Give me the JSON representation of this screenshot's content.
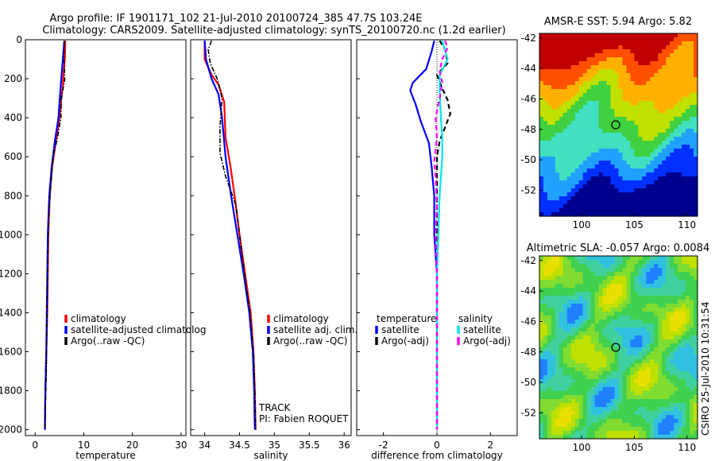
{
  "title": {
    "line1": "Argo profile: IF 1901171_102 21-Jul-2010 20100724_385 47.7S 103.24E",
    "line2": "Climatology: CARS2009. Satellite-adjusted climatology: synTS_20100720.nc (1.2d earlier)"
  },
  "colors": {
    "climatology": "#ff0000",
    "satellite": "#0000ff",
    "argo": "#000000",
    "sal_satellite": "#00e5ee",
    "sal_argo": "#ff00ff"
  },
  "chart_data": [
    {
      "id": "temperature",
      "type": "line",
      "xlabel": "temperature",
      "xlim": [
        -2,
        31
      ],
      "ylim": [
        2030,
        0
      ],
      "xticks": [
        0,
        10,
        20,
        30
      ],
      "yticks": [
        0,
        200,
        400,
        600,
        800,
        1000,
        1200,
        1400,
        1600,
        1800,
        2000
      ],
      "legend": [
        "climatology",
        "satellite-adjusted climatolog",
        "Argo(..raw -QC)"
      ],
      "series": [
        {
          "name": "climatology",
          "style": "red",
          "points": [
            [
              6.2,
              5
            ],
            [
              6.1,
              100
            ],
            [
              5.6,
              250
            ],
            [
              5.0,
              400
            ],
            [
              4.2,
              530
            ],
            [
              3.5,
              650
            ],
            [
              3.0,
              800
            ],
            [
              2.7,
              1000
            ],
            [
              2.6,
              1200
            ],
            [
              2.5,
              1400
            ],
            [
              2.3,
              1600
            ],
            [
              2.1,
              1800
            ],
            [
              2.0,
              2000
            ]
          ]
        },
        {
          "name": "satellite",
          "style": "blue",
          "points": [
            [
              6.0,
              5
            ],
            [
              5.7,
              100
            ],
            [
              5.2,
              250
            ],
            [
              4.8,
              400
            ],
            [
              4.0,
              530
            ],
            [
              3.4,
              650
            ],
            [
              2.9,
              800
            ],
            [
              2.6,
              1000
            ],
            [
              2.5,
              1200
            ],
            [
              2.4,
              1400
            ],
            [
              2.3,
              1600
            ],
            [
              2.1,
              1800
            ],
            [
              2.0,
              2000
            ]
          ]
        },
        {
          "name": "argo",
          "style": "black",
          "points": [
            [
              6.0,
              5
            ],
            [
              5.9,
              100
            ],
            [
              6.1,
              200
            ],
            [
              5.4,
              300
            ],
            [
              5.3,
              400
            ],
            [
              4.6,
              500
            ],
            [
              3.7,
              600
            ],
            [
              3.2,
              750
            ],
            [
              2.8,
              900
            ],
            [
              2.6,
              1100
            ],
            [
              2.5,
              1300
            ],
            [
              2.4,
              1500
            ],
            [
              2.3,
              1700
            ],
            [
              2.1,
              1900
            ],
            [
              2.0,
              2000
            ]
          ]
        }
      ]
    },
    {
      "id": "salinity",
      "type": "line",
      "xlabel": "salinity",
      "xlim": [
        33.8,
        36.1
      ],
      "ylim": [
        2030,
        0
      ],
      "xticks": [
        34,
        34.5,
        35,
        35.5,
        36
      ],
      "legend": [
        "climatology",
        "satellite adj. clim.",
        "Argo(..raw -QC)"
      ],
      "annotation": [
        "TRACK",
        "PI: Fabien ROQUET"
      ],
      "series": [
        {
          "name": "climatology",
          "style": "red",
          "points": [
            [
              34.0,
              5
            ],
            [
              34.0,
              100
            ],
            [
              34.1,
              180
            ],
            [
              34.2,
              230
            ],
            [
              34.28,
              320
            ],
            [
              34.3,
              500
            ],
            [
              34.37,
              650
            ],
            [
              34.43,
              800
            ],
            [
              34.5,
              1000
            ],
            [
              34.58,
              1200
            ],
            [
              34.66,
              1400
            ],
            [
              34.7,
              1600
            ],
            [
              34.72,
              1800
            ],
            [
              34.73,
              2000
            ]
          ]
        },
        {
          "name": "satellite",
          "style": "blue",
          "points": [
            [
              34.0,
              5
            ],
            [
              34.02,
              100
            ],
            [
              34.1,
              200
            ],
            [
              34.2,
              280
            ],
            [
              34.25,
              400
            ],
            [
              34.3,
              600
            ],
            [
              34.38,
              800
            ],
            [
              34.47,
              1000
            ],
            [
              34.56,
              1200
            ],
            [
              34.64,
              1400
            ],
            [
              34.69,
              1600
            ],
            [
              34.71,
              1800
            ],
            [
              34.72,
              2000
            ]
          ]
        },
        {
          "name": "argo",
          "style": "black",
          "points": [
            [
              34.1,
              5
            ],
            [
              34.05,
              50
            ],
            [
              34.08,
              120
            ],
            [
              34.18,
              200
            ],
            [
              34.25,
              300
            ],
            [
              34.22,
              450
            ],
            [
              34.22,
              580
            ],
            [
              34.3,
              700
            ],
            [
              34.45,
              850
            ],
            [
              34.5,
              1000
            ],
            [
              34.57,
              1200
            ],
            [
              34.65,
              1400
            ],
            [
              34.7,
              1600
            ],
            [
              34.72,
              1800
            ],
            [
              34.73,
              2000
            ]
          ]
        }
      ]
    },
    {
      "id": "difference",
      "type": "line",
      "xlabel": "difference from climatology",
      "xlim": [
        -3.0,
        3.0
      ],
      "ylim": [
        2030,
        0
      ],
      "xticks": [
        -2,
        0,
        2
      ],
      "legend_temperature": [
        "temperature",
        "satellite",
        "Argo(-adj)"
      ],
      "legend_salinity": [
        "salinity",
        "satellite",
        "Argo(-adj)"
      ],
      "series": [
        {
          "name": "temperature satellite",
          "style": "blue",
          "points": [
            [
              -0.1,
              5
            ],
            [
              -0.2,
              60
            ],
            [
              -0.4,
              150
            ],
            [
              -0.9,
              220
            ],
            [
              -1.0,
              260
            ],
            [
              -0.8,
              330
            ],
            [
              -0.6,
              420
            ],
            [
              -0.3,
              530
            ],
            [
              -0.2,
              650
            ],
            [
              -0.1,
              800
            ],
            [
              -0.1,
              1000
            ],
            [
              0.0,
              1200
            ],
            [
              0.0,
              1500
            ],
            [
              0.0,
              1800
            ],
            [
              0.0,
              2000
            ]
          ]
        },
        {
          "name": "temperature argo",
          "style": "black-dash",
          "points": [
            [
              0.1,
              5
            ],
            [
              0.3,
              50
            ],
            [
              0.4,
              120
            ],
            [
              0.0,
              180
            ],
            [
              0.2,
              250
            ],
            [
              0.4,
              310
            ],
            [
              0.5,
              380
            ],
            [
              0.3,
              450
            ],
            [
              0.1,
              520
            ],
            [
              0.0,
              600
            ],
            [
              0.0,
              750
            ],
            [
              0.0,
              900
            ],
            [
              0.0,
              1100
            ],
            [
              0.0,
              1400
            ],
            [
              0.0,
              1700
            ],
            [
              0.0,
              2000
            ]
          ]
        },
        {
          "name": "salinity satellite",
          "style": "cyan",
          "points": [
            [
              0.2,
              5
            ],
            [
              0.4,
              100
            ],
            [
              0.1,
              180
            ],
            [
              0.1,
              260
            ],
            [
              0.15,
              400
            ],
            [
              0.2,
              500
            ],
            [
              0.2,
              600
            ],
            [
              0.1,
              800
            ],
            [
              0.05,
              1000
            ],
            [
              0.0,
              1200
            ],
            [
              0.0,
              1500
            ],
            [
              0.0,
              2000
            ]
          ]
        },
        {
          "name": "salinity argo",
          "style": "magenta-dash",
          "points": [
            [
              0.3,
              5
            ],
            [
              0.4,
              40
            ],
            [
              0.2,
              100
            ],
            [
              0.1,
              160
            ],
            [
              0.2,
              220
            ],
            [
              0.1,
              300
            ],
            [
              -0.05,
              400
            ],
            [
              0.0,
              500
            ],
            [
              -0.1,
              620
            ],
            [
              -0.05,
              700
            ],
            [
              0.0,
              850
            ],
            [
              -0.05,
              1000
            ],
            [
              0.0,
              1200
            ],
            [
              0.0,
              1500
            ],
            [
              0.0,
              2000
            ]
          ]
        }
      ]
    },
    {
      "id": "sst_map",
      "type": "heatmap",
      "title": "AMSR-E SST: 5.94 Argo: 5.82",
      "xlim": [
        96,
        111
      ],
      "ylim": [
        -53.7,
        -41.7
      ],
      "xticks": [
        100,
        105,
        110
      ],
      "yticks": [
        -42,
        -44,
        -46,
        -48,
        -50,
        -52
      ],
      "marker": [
        103.24,
        -47.7
      ],
      "palette": [
        "#00008f",
        "#0030ff",
        "#20a0ff",
        "#40e0c0",
        "#40d040",
        "#c0e000",
        "#ffb000",
        "#ff5000",
        "#c00000"
      ]
    },
    {
      "id": "sla_map",
      "type": "heatmap",
      "title": "Altimetric SLA: -0.057 Argo: 0.0084",
      "xlim": [
        96,
        111
      ],
      "ylim": [
        -53.7,
        -41.7
      ],
      "xticks": [
        100,
        105,
        110
      ],
      "yticks": [
        -42,
        -44,
        -46,
        -48,
        -50,
        -52
      ],
      "marker": [
        103.24,
        -47.7
      ],
      "palette": [
        "#2080ff",
        "#30c0e0",
        "#40d0a0",
        "#40d050",
        "#80dc30",
        "#c0e000",
        "#e8e000"
      ]
    }
  ],
  "side_label": "CSIRO 25-Jul-2010 10:31:54"
}
